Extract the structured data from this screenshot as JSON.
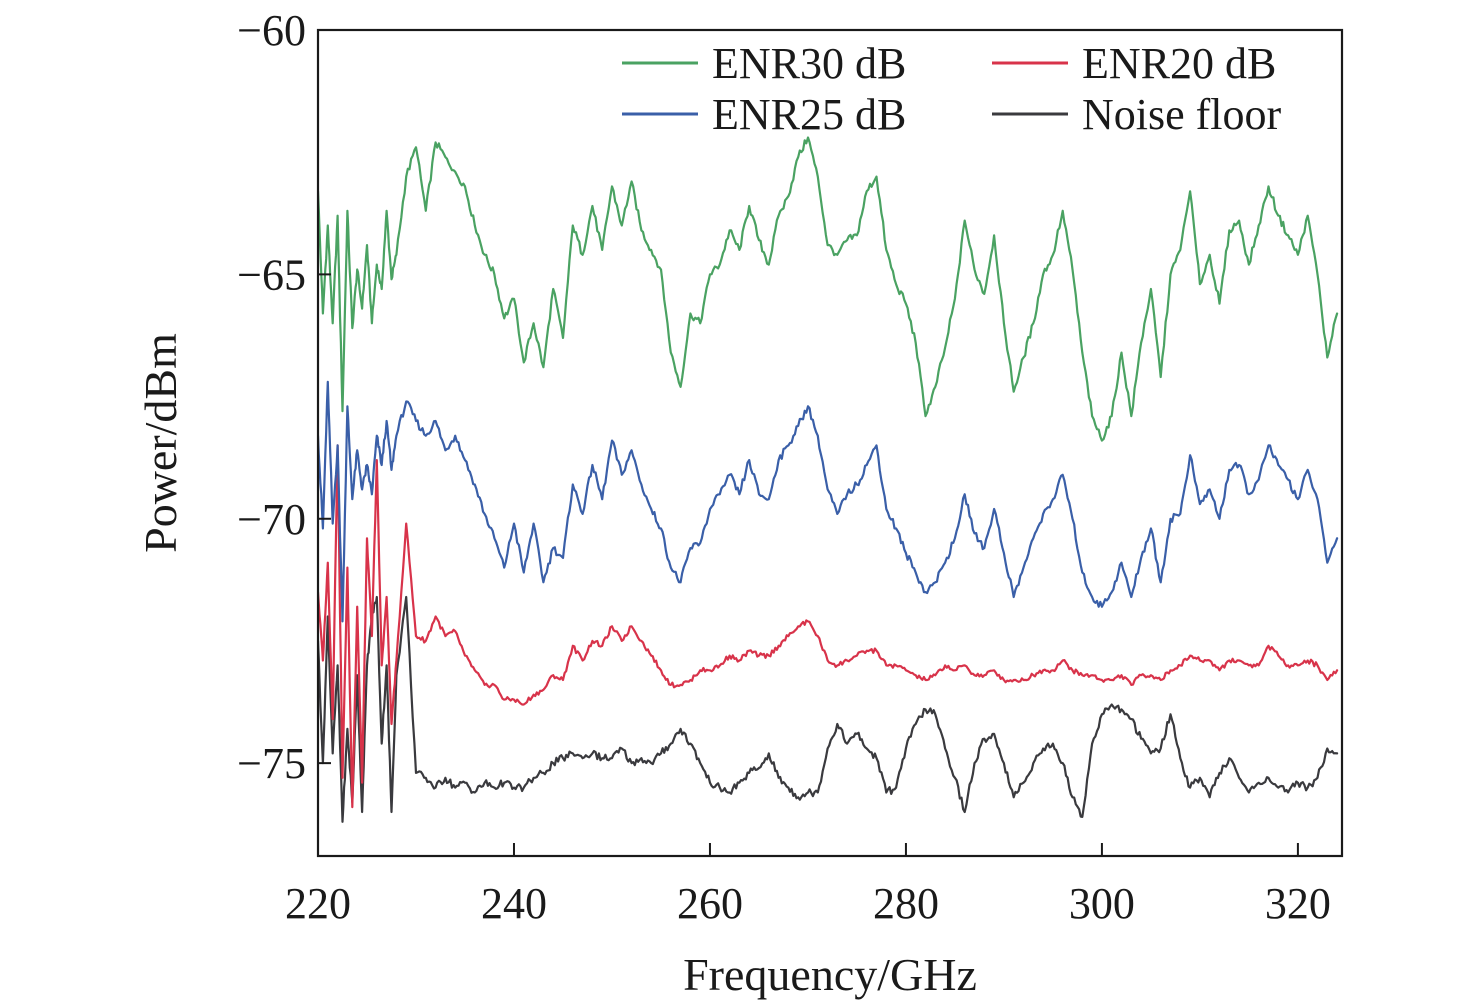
{
  "chart_data": {
    "type": "line",
    "xlabel": "Frequency/GHz",
    "ylabel": "Power/dBm",
    "xlim": [
      220,
      324.5
    ],
    "ylim": [
      -76.9,
      -60
    ],
    "x_ticks": [
      220,
      240,
      260,
      280,
      300,
      320
    ],
    "x_tick_labels": [
      "220",
      "240",
      "260",
      "280",
      "300",
      "320"
    ],
    "y_ticks": [
      -60,
      -65,
      -70,
      -75
    ],
    "y_tick_labels": [
      "−60",
      "−65",
      "−70",
      "−75"
    ],
    "grid": false,
    "legend_position": "top-right",
    "series": [
      {
        "name": "ENR30 dB",
        "color": "#4aa262",
        "x": [
          220,
          220.5,
          221,
          221.5,
          222,
          222.5,
          223,
          223.5,
          224,
          224.5,
          225,
          225.5,
          226,
          226.5,
          227,
          227.5,
          228,
          229,
          230,
          231,
          232,
          233,
          234,
          235,
          236,
          237,
          238,
          239,
          240,
          241,
          242,
          243,
          244,
          245,
          246,
          247,
          248,
          249,
          250,
          251,
          252,
          253,
          254,
          255,
          256,
          257,
          258,
          259,
          260,
          261,
          262,
          263,
          264,
          265,
          266,
          267,
          268,
          269,
          270,
          271,
          272,
          273,
          274,
          275,
          276,
          277,
          278,
          279,
          280,
          281,
          282,
          283,
          284,
          285,
          286,
          287,
          288,
          289,
          290,
          291,
          292,
          293,
          294,
          295,
          296,
          297,
          298,
          299,
          300,
          301,
          302,
          303,
          304,
          305,
          306,
          307,
          308,
          309,
          310,
          311,
          312,
          313,
          314,
          315,
          316,
          317,
          318,
          319,
          320,
          321,
          322,
          323,
          324
        ],
        "values": [
          -63.3,
          -65.8,
          -64.0,
          -66.0,
          -63.8,
          -67.8,
          -63.7,
          -66.1,
          -64.9,
          -65.7,
          -64.4,
          -66.0,
          -64.8,
          -65.3,
          -63.7,
          -65.1,
          -64.6,
          -63.0,
          -62.4,
          -63.7,
          -62.3,
          -62.6,
          -62.9,
          -63.2,
          -64.0,
          -64.6,
          -65.0,
          -65.9,
          -65.5,
          -66.8,
          -66.0,
          -66.9,
          -65.3,
          -66.3,
          -64.0,
          -64.6,
          -63.6,
          -64.5,
          -63.2,
          -64.0,
          -63.1,
          -64.1,
          -64.5,
          -64.9,
          -66.6,
          -67.3,
          -65.8,
          -66.0,
          -65.0,
          -64.8,
          -64.1,
          -64.5,
          -63.6,
          -64.3,
          -64.8,
          -63.8,
          -63.4,
          -62.6,
          -62.2,
          -63.0,
          -64.4,
          -64.6,
          -64.3,
          -64.2,
          -63.3,
          -63.0,
          -64.5,
          -65.2,
          -65.6,
          -66.4,
          -67.9,
          -67.3,
          -66.5,
          -65.5,
          -63.9,
          -64.9,
          -65.4,
          -64.2,
          -66.0,
          -67.4,
          -66.7,
          -66.0,
          -65.0,
          -64.6,
          -63.7,
          -64.9,
          -66.6,
          -67.9,
          -68.4,
          -67.9,
          -66.6,
          -67.9,
          -66.4,
          -65.3,
          -67.1,
          -65.0,
          -64.5,
          -63.3,
          -65.2,
          -64.6,
          -65.6,
          -64.1,
          -63.9,
          -64.8,
          -64.0,
          -63.2,
          -63.8,
          -64.2,
          -64.6,
          -63.8,
          -65.0,
          -66.7,
          -65.8
        ]
      },
      {
        "name": "ENR25 dB",
        "color": "#3a5fa8",
        "x": [
          220,
          220.5,
          221,
          221.5,
          222,
          222.5,
          223,
          223.5,
          224,
          224.5,
          225,
          225.5,
          226,
          226.5,
          227,
          227.5,
          228,
          229,
          230,
          231,
          232,
          233,
          234,
          235,
          236,
          237,
          238,
          239,
          240,
          241,
          242,
          243,
          244,
          245,
          246,
          247,
          248,
          249,
          250,
          251,
          252,
          253,
          254,
          255,
          256,
          257,
          258,
          259,
          260,
          261,
          262,
          263,
          264,
          265,
          266,
          267,
          268,
          269,
          270,
          271,
          272,
          273,
          274,
          275,
          276,
          277,
          278,
          279,
          280,
          281,
          282,
          283,
          284,
          285,
          286,
          287,
          288,
          289,
          290,
          291,
          292,
          293,
          294,
          295,
          296,
          297,
          298,
          299,
          300,
          301,
          302,
          303,
          304,
          305,
          306,
          307,
          308,
          309,
          310,
          311,
          312,
          313,
          314,
          315,
          316,
          317,
          318,
          319,
          320,
          321,
          322,
          323,
          324
        ],
        "values": [
          -68.3,
          -70.2,
          -67.2,
          -70.1,
          -68.5,
          -72.1,
          -67.7,
          -69.6,
          -68.6,
          -69.4,
          -68.9,
          -69.5,
          -68.3,
          -68.9,
          -68.0,
          -69.0,
          -68.3,
          -67.6,
          -68.0,
          -68.3,
          -68.0,
          -68.6,
          -68.3,
          -68.8,
          -69.3,
          -69.9,
          -70.4,
          -71.0,
          -70.1,
          -71.1,
          -70.1,
          -71.3,
          -70.6,
          -70.8,
          -69.3,
          -69.9,
          -68.9,
          -69.6,
          -68.4,
          -69.1,
          -68.6,
          -69.3,
          -69.8,
          -70.2,
          -71.0,
          -71.3,
          -70.6,
          -70.5,
          -69.8,
          -69.5,
          -69.1,
          -69.5,
          -68.8,
          -69.5,
          -69.6,
          -68.8,
          -68.5,
          -68.1,
          -67.7,
          -68.3,
          -69.4,
          -69.9,
          -69.5,
          -69.3,
          -68.9,
          -68.5,
          -69.8,
          -70.2,
          -70.7,
          -71.1,
          -71.5,
          -71.3,
          -70.9,
          -70.4,
          -69.5,
          -70.3,
          -70.6,
          -69.8,
          -70.7,
          -71.6,
          -71.0,
          -70.4,
          -69.9,
          -69.6,
          -69.1,
          -70.0,
          -71.1,
          -71.6,
          -71.8,
          -71.5,
          -70.9,
          -71.6,
          -70.8,
          -70.2,
          -71.3,
          -70.0,
          -69.9,
          -68.7,
          -69.7,
          -69.4,
          -70.0,
          -69.0,
          -68.9,
          -69.5,
          -69.2,
          -68.5,
          -68.9,
          -69.2,
          -69.6,
          -69.0,
          -69.6,
          -70.9,
          -70.4
        ]
      },
      {
        "name": "ENR20 dB",
        "color": "#d8334a",
        "x": [
          220,
          220.5,
          221,
          221.5,
          222,
          222.5,
          223,
          223.5,
          224,
          224.5,
          225,
          225.5,
          226,
          226.5,
          227,
          227.5,
          228,
          229,
          230,
          231,
          232,
          233,
          234,
          235,
          236,
          237,
          238,
          239,
          240,
          241,
          242,
          243,
          244,
          245,
          246,
          247,
          248,
          249,
          250,
          251,
          252,
          253,
          254,
          255,
          256,
          257,
          258,
          259,
          260,
          261,
          262,
          263,
          264,
          265,
          266,
          267,
          268,
          269,
          270,
          271,
          272,
          273,
          274,
          275,
          276,
          277,
          278,
          279,
          280,
          281,
          282,
          283,
          284,
          285,
          286,
          287,
          288,
          289,
          290,
          291,
          292,
          293,
          294,
          295,
          296,
          297,
          298,
          299,
          300,
          301,
          302,
          303,
          304,
          305,
          306,
          307,
          308,
          309,
          310,
          311,
          312,
          313,
          314,
          315,
          316,
          317,
          318,
          319,
          320,
          321,
          322,
          323,
          324
        ],
        "values": [
          -71.5,
          -72.9,
          -70.9,
          -74.1,
          -68.5,
          -75.3,
          -71.0,
          -75.9,
          -71.8,
          -75.4,
          -70.4,
          -72.4,
          -68.8,
          -73.0,
          -71.6,
          -74.2,
          -72.9,
          -70.1,
          -72.4,
          -72.5,
          -72.0,
          -72.4,
          -72.3,
          -72.8,
          -73.1,
          -73.4,
          -73.4,
          -73.7,
          -73.7,
          -73.8,
          -73.6,
          -73.5,
          -73.2,
          -73.3,
          -72.6,
          -72.9,
          -72.5,
          -72.6,
          -72.2,
          -72.5,
          -72.2,
          -72.5,
          -72.8,
          -73.1,
          -73.4,
          -73.4,
          -73.3,
          -73.1,
          -73.1,
          -73.0,
          -72.8,
          -72.9,
          -72.7,
          -72.8,
          -72.8,
          -72.6,
          -72.4,
          -72.2,
          -72.1,
          -72.4,
          -72.9,
          -73.0,
          -72.9,
          -72.8,
          -72.7,
          -72.7,
          -73.0,
          -73.0,
          -73.1,
          -73.2,
          -73.3,
          -73.2,
          -73.0,
          -73.1,
          -73.0,
          -73.2,
          -73.2,
          -73.1,
          -73.3,
          -73.3,
          -73.3,
          -73.2,
          -73.1,
          -73.1,
          -72.9,
          -73.1,
          -73.2,
          -73.2,
          -73.3,
          -73.3,
          -73.2,
          -73.4,
          -73.2,
          -73.2,
          -73.3,
          -73.1,
          -73.0,
          -72.8,
          -72.9,
          -72.9,
          -73.1,
          -72.9,
          -72.9,
          -73.0,
          -73.0,
          -72.6,
          -72.8,
          -73.0,
          -73.0,
          -72.9,
          -73.0,
          -73.3,
          -73.1
        ]
      },
      {
        "name": "Noise floor",
        "color": "#3a3a3e",
        "x": [
          220,
          220.5,
          221,
          221.5,
          222,
          222.5,
          223,
          223.5,
          224,
          224.5,
          225,
          225.5,
          226,
          226.5,
          227,
          227.5,
          228,
          229,
          230,
          231,
          232,
          233,
          234,
          235,
          236,
          237,
          238,
          239,
          240,
          241,
          242,
          243,
          244,
          245,
          246,
          247,
          248,
          249,
          250,
          251,
          252,
          253,
          254,
          255,
          256,
          257,
          258,
          259,
          260,
          261,
          262,
          263,
          264,
          265,
          266,
          267,
          268,
          269,
          270,
          271,
          272,
          273,
          274,
          275,
          276,
          277,
          278,
          279,
          280,
          281,
          282,
          283,
          284,
          285,
          286,
          287,
          288,
          289,
          290,
          291,
          292,
          293,
          294,
          295,
          296,
          297,
          298,
          299,
          300,
          301,
          302,
          303,
          304,
          305,
          306,
          307,
          308,
          309,
          310,
          311,
          312,
          313,
          314,
          315,
          316,
          317,
          318,
          319,
          320,
          321,
          322,
          323,
          324
        ],
        "values": [
          -72.5,
          -75.0,
          -72.0,
          -74.8,
          -73.0,
          -76.2,
          -74.3,
          -75.8,
          -73.2,
          -76.0,
          -73.0,
          -72.0,
          -71.6,
          -74.6,
          -73.0,
          -76.0,
          -73.2,
          -71.6,
          -75.2,
          -75.3,
          -75.5,
          -75.3,
          -75.5,
          -75.4,
          -75.6,
          -75.4,
          -75.5,
          -75.4,
          -75.5,
          -75.5,
          -75.3,
          -75.2,
          -75.0,
          -74.9,
          -74.8,
          -74.9,
          -74.8,
          -74.9,
          -74.9,
          -74.7,
          -75.0,
          -74.9,
          -75.0,
          -74.8,
          -74.6,
          -74.3,
          -74.6,
          -75.0,
          -75.4,
          -75.5,
          -75.6,
          -75.4,
          -75.2,
          -75.1,
          -74.8,
          -75.3,
          -75.5,
          -75.7,
          -75.6,
          -75.6,
          -74.7,
          -74.2,
          -74.6,
          -74.4,
          -74.7,
          -74.9,
          -75.6,
          -75.5,
          -74.7,
          -74.2,
          -73.9,
          -74.0,
          -74.7,
          -75.3,
          -76.0,
          -75.0,
          -74.5,
          -74.4,
          -75.0,
          -75.7,
          -75.4,
          -75.0,
          -74.7,
          -74.6,
          -75.0,
          -75.7,
          -76.1,
          -74.6,
          -74.0,
          -73.8,
          -73.9,
          -74.1,
          -74.5,
          -74.8,
          -74.7,
          -74.0,
          -74.9,
          -75.5,
          -75.3,
          -75.7,
          -75.2,
          -74.9,
          -75.3,
          -75.6,
          -75.4,
          -75.3,
          -75.5,
          -75.6,
          -75.4,
          -75.5,
          -75.3,
          -74.7,
          -74.8
        ]
      }
    ]
  }
}
